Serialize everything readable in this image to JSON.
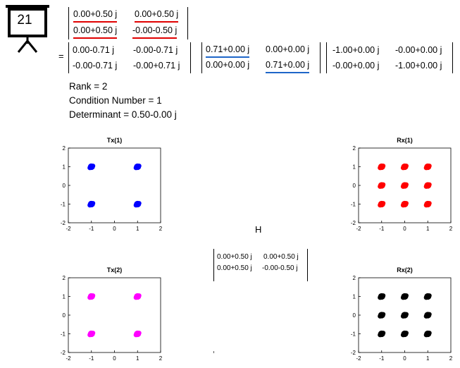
{
  "slide_number": "21",
  "equals_sign": "=",
  "matrices": {
    "H_top": [
      [
        "0.00+0.50 j",
        "0.00+0.50 j"
      ],
      [
        "0.00+0.50 j",
        "-0.00-0.50 j"
      ]
    ],
    "U": [
      [
        "0.00-0.71 j",
        "-0.00-0.71 j"
      ],
      [
        "-0.00-0.71 j",
        "-0.00+0.71 j"
      ]
    ],
    "S": [
      [
        "0.71+0.00 j",
        "0.00+0.00 j"
      ],
      [
        "0.00+0.00 j",
        "0.71+0.00 j"
      ]
    ],
    "V": [
      [
        "-1.00+0.00 j",
        "-0.00+0.00 j"
      ],
      [
        "-0.00+0.00 j",
        "-1.00+0.00 j"
      ]
    ],
    "H_center": [
      [
        "0.00+0.50 j",
        "0.00+0.50 j"
      ],
      [
        "0.00+0.50 j",
        "-0.00-0.50 j"
      ]
    ]
  },
  "stats": {
    "rank": "Rank = 2",
    "condition_number": "Condition Number = 1",
    "determinant": "Determinant = 0.50-0.00 j"
  },
  "channel_label": "H",
  "colors": {
    "accent_red": "#e00000",
    "accent_blue": "#1e66c8"
  },
  "chart_data": [
    {
      "type": "scatter",
      "title": "Tx(1)",
      "color": "#0000ff",
      "xlim": [
        -2,
        2
      ],
      "ylim": [
        -2,
        2
      ],
      "xticks": [
        "-2",
        "-1",
        "0",
        "1",
        "2"
      ],
      "yticks": [
        "-2",
        "-1",
        "0",
        "1",
        "2"
      ],
      "points": [
        [
          -1,
          1
        ],
        [
          1,
          1
        ],
        [
          -1,
          -1
        ],
        [
          1,
          -1
        ]
      ]
    },
    {
      "type": "scatter",
      "title": "Rx(1)",
      "color": "#ff0000",
      "xlim": [
        -2,
        2
      ],
      "ylim": [
        -2,
        2
      ],
      "xticks": [
        "-2",
        "-1",
        "0",
        "1",
        "2"
      ],
      "yticks": [
        "-2",
        "-1",
        "0",
        "1",
        "2"
      ],
      "points": [
        [
          -1,
          1
        ],
        [
          0,
          1
        ],
        [
          1,
          1
        ],
        [
          -1,
          0
        ],
        [
          0,
          0
        ],
        [
          1,
          0
        ],
        [
          -1,
          -1
        ],
        [
          0,
          -1
        ],
        [
          1,
          -1
        ]
      ]
    },
    {
      "type": "scatter",
      "title": "Tx(2)",
      "color": "#ff00ff",
      "xlim": [
        -2,
        2
      ],
      "ylim": [
        -2,
        2
      ],
      "xticks": [
        "-2",
        "-1",
        "0",
        "1",
        "2"
      ],
      "yticks": [
        "-2",
        "-1",
        "0",
        "1",
        "2"
      ],
      "points": [
        [
          -1,
          1
        ],
        [
          1,
          1
        ],
        [
          -1,
          -1
        ],
        [
          1,
          -1
        ]
      ]
    },
    {
      "type": "scatter",
      "title": "Rx(2)",
      "color": "#000000",
      "xlim": [
        -2,
        2
      ],
      "ylim": [
        -2,
        2
      ],
      "xticks": [
        "-2",
        "-1",
        "0",
        "1",
        "2"
      ],
      "yticks": [
        "-2",
        "-1",
        "0",
        "1",
        "2"
      ],
      "points": [
        [
          -1,
          1
        ],
        [
          0,
          1
        ],
        [
          1,
          1
        ],
        [
          -1,
          0
        ],
        [
          0,
          0
        ],
        [
          1,
          0
        ],
        [
          -1,
          -1
        ],
        [
          0,
          -1
        ],
        [
          1,
          -1
        ]
      ]
    }
  ]
}
